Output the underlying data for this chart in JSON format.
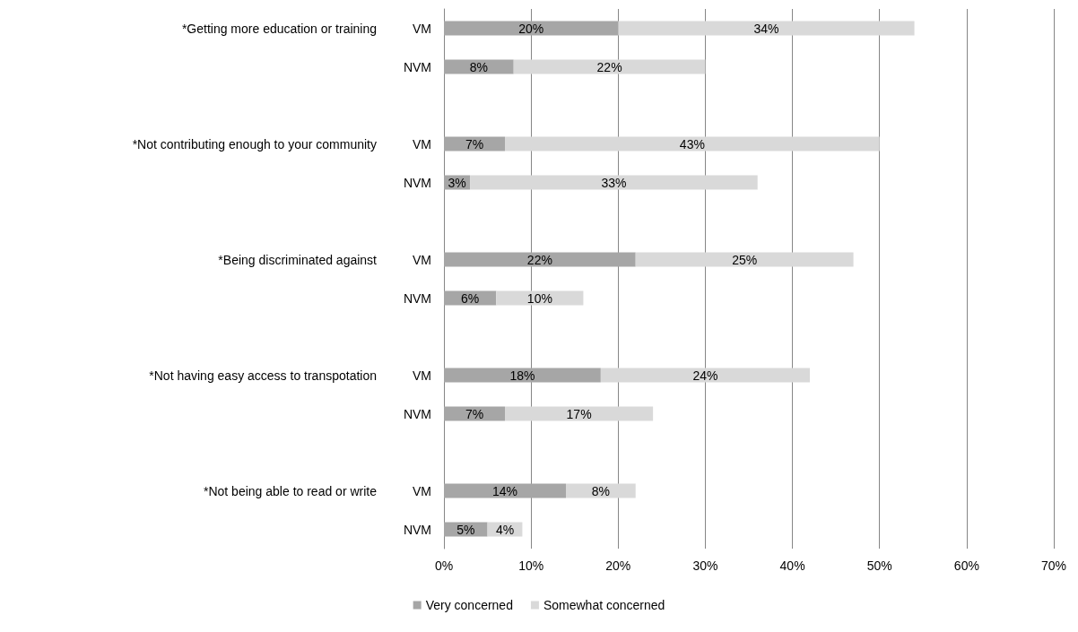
{
  "chart_data": {
    "type": "bar",
    "orientation": "horizontal",
    "stacked": true,
    "categories": [
      "VM",
      "NVM",
      null,
      "VM",
      "NVM",
      null,
      "VM",
      "NVM",
      null,
      "VM",
      "NVM",
      null,
      "VM",
      "NVM"
    ],
    "series": [
      {
        "name": "Very concerned",
        "color": "#a6a6a6",
        "values": [
          20,
          8,
          null,
          7,
          3,
          null,
          22,
          6,
          null,
          18,
          7,
          null,
          14,
          5
        ],
        "value_labels": [
          "20%",
          "8%",
          null,
          "7%",
          "3%",
          null,
          "22%",
          "6%",
          null,
          "18%",
          "7%",
          null,
          "14%",
          "5%"
        ]
      },
      {
        "name": "Somewhat concerned",
        "color": "#d9d9d9",
        "values": [
          34,
          22,
          null,
          43,
          33,
          null,
          25,
          10,
          null,
          24,
          17,
          null,
          8,
          4
        ],
        "value_labels": [
          "34%",
          "22%",
          null,
          "43%",
          "33%",
          null,
          "25%",
          "10%",
          null,
          "24%",
          "17%",
          null,
          "8%",
          "4%"
        ]
      }
    ],
    "annotations": [
      "*Getting more education or training",
      "*Not contributing enough to your community",
      "*Being discriminated against",
      "*Not having easy access to transpotation",
      "*Not being able to read or write"
    ],
    "xlim": [
      0,
      70
    ],
    "xticks": [
      {
        "value": 0,
        "label": "0%"
      },
      {
        "value": 10,
        "label": "10%"
      },
      {
        "value": 20,
        "label": "20%"
      },
      {
        "value": 30,
        "label": "30%"
      },
      {
        "value": 40,
        "label": "40%"
      },
      {
        "value": 50,
        "label": "50%"
      },
      {
        "value": 60,
        "label": "60%"
      },
      {
        "value": 70,
        "label": "70%"
      }
    ],
    "grid": "x",
    "legend": "bottom"
  }
}
